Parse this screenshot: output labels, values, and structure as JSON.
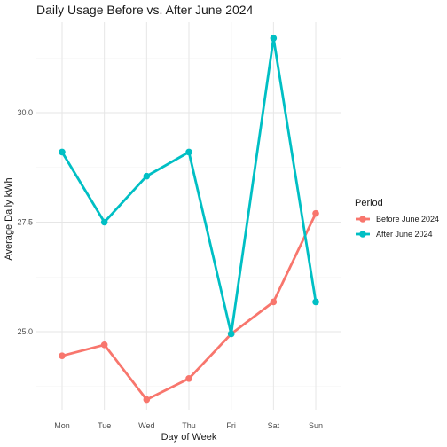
{
  "chart_data": {
    "type": "line",
    "title": "Daily Usage Before vs. After June 2024",
    "xlabel": "Day of Week",
    "ylabel": "Average Daily kWh",
    "categories": [
      "Mon",
      "Tue",
      "Wed",
      "Thu",
      "Fri",
      "Sat",
      "Sun"
    ],
    "y_ticks": [
      25.0,
      27.5,
      30.0
    ],
    "y_tick_labels": [
      "25.0",
      "27.5",
      "30.0"
    ],
    "ylim": [
      23.0,
      32.0
    ],
    "grid": true,
    "legend": {
      "title": "Period",
      "placement": "right"
    },
    "series": [
      {
        "name": "Before June 2024",
        "color": "#F8766D",
        "values": [
          24.45,
          24.7,
          23.45,
          23.93,
          24.95,
          25.68,
          27.7
        ]
      },
      {
        "name": "After June 2024",
        "color": "#00BFC4",
        "values": [
          29.1,
          27.5,
          28.55,
          29.1,
          24.95,
          31.7,
          25.68
        ]
      }
    ]
  }
}
